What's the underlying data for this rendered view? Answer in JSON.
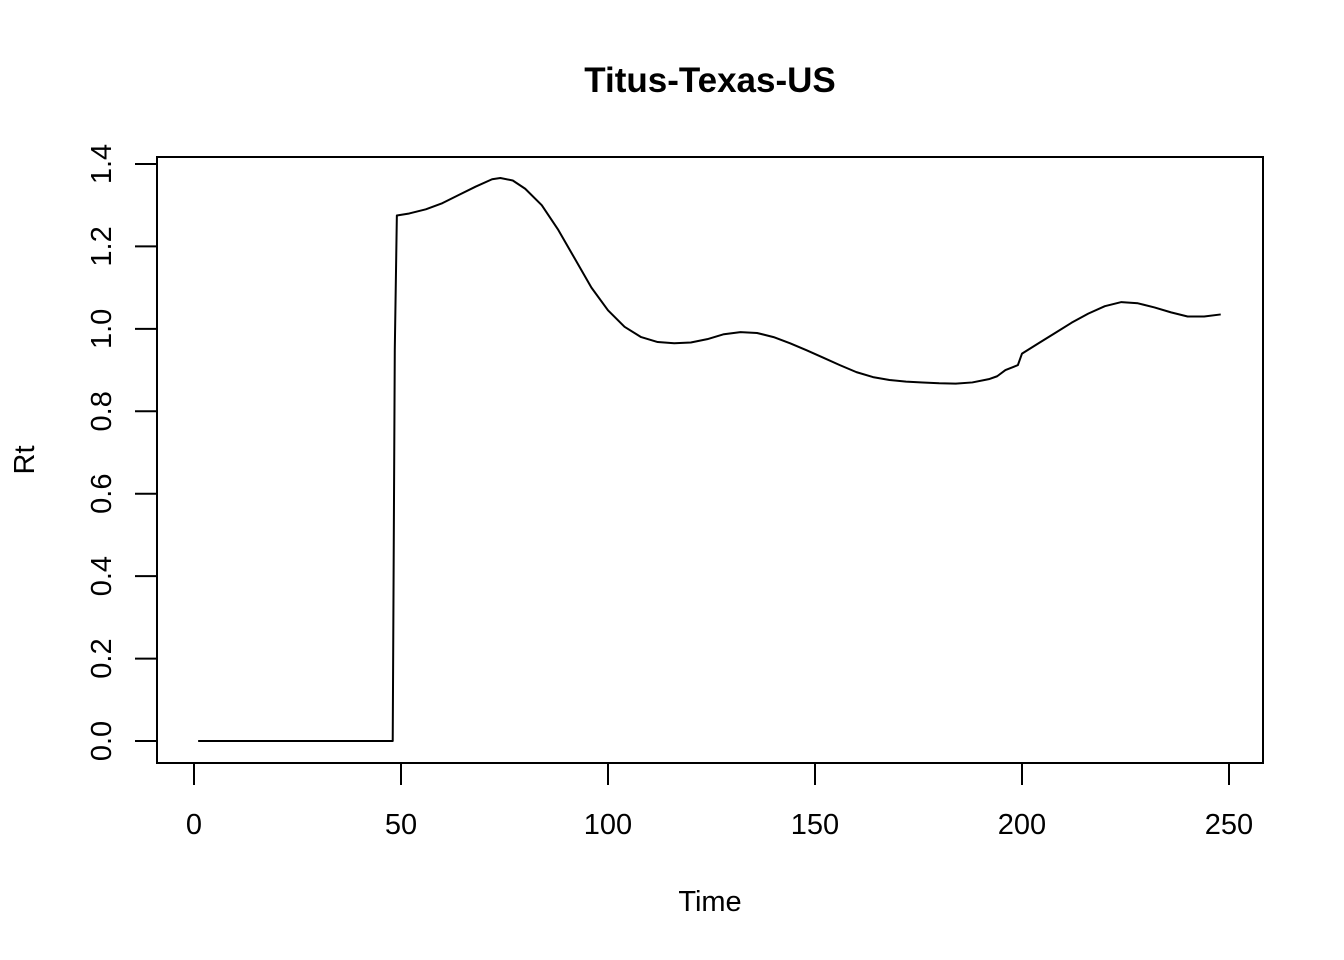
{
  "chart_data": {
    "type": "line",
    "title": "Titus-Texas-US",
    "xlabel": "Time",
    "ylabel": "Rt",
    "xlim": [
      0,
      250
    ],
    "ylim": [
      0,
      1.4
    ],
    "x_ticks": [
      0,
      50,
      100,
      150,
      200,
      250
    ],
    "x_tick_labels": [
      "0",
      "50",
      "100",
      "150",
      "200",
      "250"
    ],
    "y_ticks": [
      0,
      0.2,
      0.4,
      0.6,
      0.8,
      1.0,
      1.2,
      1.4
    ],
    "y_tick_labels": [
      "0.0",
      "0.2",
      "0.4",
      "0.6",
      "0.8",
      "1.0",
      "1.2",
      "1.4"
    ],
    "grid": false,
    "series": [
      {
        "color": "#000000",
        "points": [
          [
            1,
            0
          ],
          [
            10,
            0
          ],
          [
            20,
            0
          ],
          [
            30,
            0
          ],
          [
            40,
            0
          ],
          [
            47,
            0
          ],
          [
            48,
            0
          ],
          [
            48.5,
            0.95
          ],
          [
            49,
            1.275
          ],
          [
            52,
            1.28
          ],
          [
            56,
            1.29
          ],
          [
            60,
            1.305
          ],
          [
            64,
            1.325
          ],
          [
            68,
            1.345
          ],
          [
            72,
            1.363
          ],
          [
            74,
            1.366
          ],
          [
            77,
            1.36
          ],
          [
            80,
            1.34
          ],
          [
            84,
            1.3
          ],
          [
            88,
            1.24
          ],
          [
            92,
            1.17
          ],
          [
            96,
            1.1
          ],
          [
            100,
            1.045
          ],
          [
            104,
            1.005
          ],
          [
            108,
            0.98
          ],
          [
            112,
            0.968
          ],
          [
            116,
            0.965
          ],
          [
            120,
            0.967
          ],
          [
            124,
            0.975
          ],
          [
            128,
            0.987
          ],
          [
            132,
            0.992
          ],
          [
            136,
            0.99
          ],
          [
            140,
            0.98
          ],
          [
            144,
            0.965
          ],
          [
            148,
            0.948
          ],
          [
            152,
            0.93
          ],
          [
            156,
            0.912
          ],
          [
            160,
            0.895
          ],
          [
            164,
            0.883
          ],
          [
            168,
            0.876
          ],
          [
            172,
            0.872
          ],
          [
            176,
            0.87
          ],
          [
            180,
            0.868
          ],
          [
            184,
            0.867
          ],
          [
            188,
            0.87
          ],
          [
            192,
            0.878
          ],
          [
            194,
            0.885
          ],
          [
            196,
            0.9
          ],
          [
            198,
            0.908
          ],
          [
            199,
            0.912
          ],
          [
            200,
            0.94
          ],
          [
            204,
            0.965
          ],
          [
            208,
            0.99
          ],
          [
            212,
            1.015
          ],
          [
            216,
            1.037
          ],
          [
            220,
            1.055
          ],
          [
            224,
            1.065
          ],
          [
            228,
            1.062
          ],
          [
            232,
            1.052
          ],
          [
            236,
            1.04
          ],
          [
            240,
            1.03
          ],
          [
            244,
            1.03
          ],
          [
            248,
            1.035
          ]
        ]
      }
    ]
  }
}
